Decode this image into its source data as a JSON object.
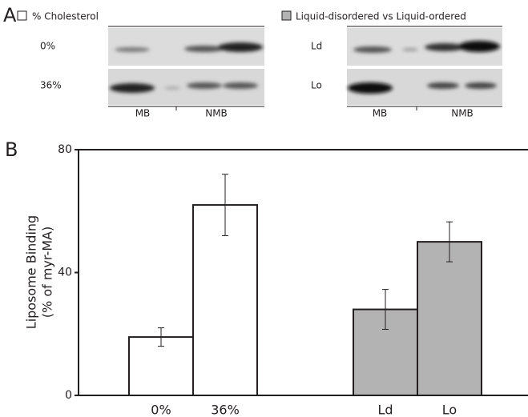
{
  "panel_a": {
    "label": "A",
    "left": {
      "legend": "% Cholesterol",
      "rows": [
        "0%",
        "36%"
      ],
      "columns": [
        "MB",
        "NMB"
      ]
    },
    "right": {
      "legend": "Liquid-disordered vs Liquid-ordered",
      "rows": [
        "Ld",
        "Lo"
      ],
      "columns": [
        "MB",
        "NMB"
      ]
    }
  },
  "chart_data": {
    "type": "bar",
    "panel_label": "B",
    "y_label": [
      "Liposome Binding",
      "(% of myr-MA)"
    ],
    "categories": [
      "0%",
      "36%",
      "Ld",
      "Lo"
    ],
    "values": [
      19,
      62,
      28,
      50
    ],
    "errors": [
      3,
      10,
      6.5,
      6.5
    ],
    "colors": [
      "#ffffff",
      "#ffffff",
      "#b3b3b3",
      "#b3b3b3"
    ],
    "ylim": [
      0,
      80
    ],
    "yticks": [
      0,
      40,
      80
    ]
  }
}
